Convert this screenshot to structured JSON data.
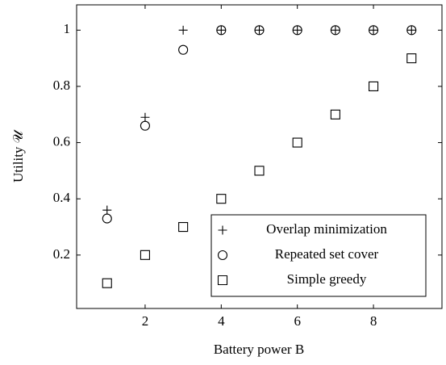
{
  "chart_data": {
    "type": "scatter",
    "xlabel": "Battery power B",
    "ylabel": "Utility 𝒰",
    "x": [
      1,
      2,
      3,
      4,
      5,
      6,
      7,
      8,
      9
    ],
    "series": [
      {
        "name": "Overlap minimization",
        "color": "#000000",
        "marker": "plus",
        "values": [
          0.36,
          0.69,
          1,
          1,
          1,
          1,
          1,
          1,
          1
        ]
      },
      {
        "name": "Repeated set cover",
        "color": "#000000",
        "marker": "circle",
        "values": [
          0.33,
          0.66,
          0.93,
          1,
          1,
          1,
          1,
          1,
          1
        ]
      },
      {
        "name": "Simple greedy",
        "color": "#000000",
        "marker": "square",
        "values": [
          0.1,
          0.2,
          0.3,
          0.4,
          0.5,
          0.6,
          0.7,
          0.8,
          0.9
        ]
      }
    ],
    "xlim": [
      0.2,
      9.8
    ],
    "ylim": [
      0.01,
      1.09
    ],
    "xticks": [
      2,
      4,
      6,
      8
    ],
    "yticks": [
      0.2,
      0.4,
      0.6,
      0.8,
      1
    ],
    "legend": "lower-right"
  }
}
